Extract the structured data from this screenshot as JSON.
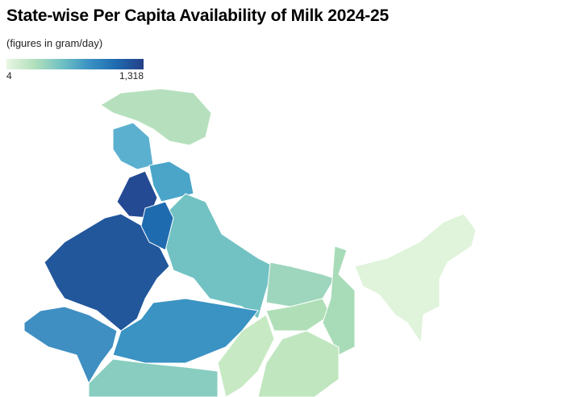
{
  "title": "State-wise Per Capita Availability of Milk 2024-25",
  "subtitle": "(figures in gram/day)",
  "legend": {
    "min": "4",
    "max": "1,318",
    "colors": [
      "#e8f6e3",
      "#b3e0bc",
      "#72c2c3",
      "#3a93c3",
      "#1f6bb0",
      "#253f86"
    ]
  },
  "regions": [
    {
      "id": "jammu-kashmir-ladakh",
      "color": "#b6e0bd"
    },
    {
      "id": "himachal-pradesh",
      "color": "#5cb0cf"
    },
    {
      "id": "punjab",
      "color": "#234a93"
    },
    {
      "id": "haryana",
      "color": "#1f6bb0"
    },
    {
      "id": "uttarakhand",
      "color": "#4aa5c9"
    },
    {
      "id": "rajasthan",
      "color": "#22579c"
    },
    {
      "id": "gujarat",
      "color": "#3f8fc2"
    },
    {
      "id": "madhya-pradesh",
      "color": "#3a93c3"
    },
    {
      "id": "uttar-pradesh",
      "color": "#72c2c3"
    },
    {
      "id": "bihar",
      "color": "#9ed6bd"
    },
    {
      "id": "jharkhand",
      "color": "#b0dfb7"
    },
    {
      "id": "west-bengal",
      "color": "#a8dcb8"
    },
    {
      "id": "chhattisgarh",
      "color": "#c7e9c3"
    },
    {
      "id": "odisha",
      "color": "#c0e6bf"
    },
    {
      "id": "maharashtra",
      "color": "#88cdc0"
    },
    {
      "id": "north-east",
      "color": "#e0f3db"
    }
  ]
}
